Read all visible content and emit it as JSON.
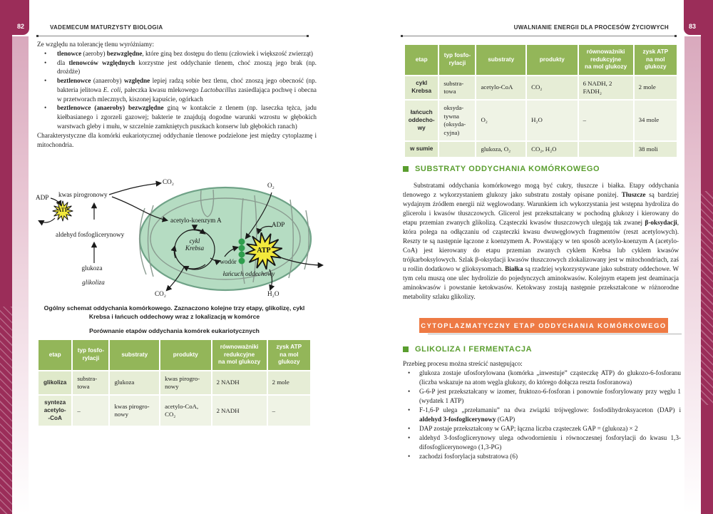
{
  "colors": {
    "maroon": "#9b2d59",
    "table_header_green": "#93b659",
    "heading_green": "#5a9e2f",
    "banner_orange": "#ee7a44",
    "mito_fill": "#b5dcc2",
    "mito_stroke": "#6fa287",
    "atp_yellow": "#f2e93c",
    "dot_green": "#2f9e4e"
  },
  "page_left": {
    "page_number": "82",
    "header": "VADEMECUM MATURZYSTY BIOLOGIA",
    "intro": "Ze względu na tolerancję tlenu wyróżniamy:",
    "bullets": [
      [
        {
          "t": "tlenowce",
          "b": true
        },
        {
          "t": " (aeroby) "
        },
        {
          "t": "bezwzględne",
          "b": true
        },
        {
          "t": ", które giną bez dostępu do tlenu (człowiek i większość zwierząt)"
        }
      ],
      [
        {
          "t": "dla "
        },
        {
          "t": "tlenowców względnych",
          "b": true
        },
        {
          "t": " korzystne jest oddychanie tlenem, choć znoszą jego brak (np. drożdże)"
        }
      ],
      [
        {
          "t": "beztlenowce",
          "b": true
        },
        {
          "t": " (anaeroby) "
        },
        {
          "t": "względne",
          "b": true
        },
        {
          "t": " lepiej radzą sobie bez tlenu, choć znoszą jego obecność (np. bakteria jelitowa "
        },
        {
          "t": "E. coli",
          "i": true
        },
        {
          "t": ", pałeczka kwasu mlekowego "
        },
        {
          "t": "Lactobacillus",
          "i": true
        },
        {
          "t": " zasiedlająca pochwę i obecna w przetworach mlecznych, kiszonej kapuście, ogórkach"
        }
      ],
      [
        {
          "t": "beztlenowce (anaeroby) bezwzględne",
          "b": true
        },
        {
          "t": " giną w kontakcie z tlenem (np. laseczka tężca, jadu kiełbasianego i zgorzeli gazowej; bakterie te znajdują dogodne warunki wzrostu w głębokich warstwach gleby i mułu, w szczelnie zamkniętych puszkach konserw lub głębokich ranach)"
        }
      ]
    ],
    "closing": "Charakterystyczne dla komórki eukariotycznej oddychanie tlenowe podzielone jest między cytoplazmę i mitochondria.",
    "diagram_labels": {
      "co2_top": "CO₂",
      "kwas_pirogronowy": "kwas pirogronowy",
      "adp_left": "ADP",
      "atp_left": "ATP",
      "aldehyd": "aldehyd fosfoglicerynowy",
      "glukoza": "glukoza",
      "glikoliza": "glikoliza",
      "acetylo_koenzym": "acetylo-koenzym A",
      "cykl_krebsa": "cykl\nKrebsa",
      "wodor": "wodór",
      "adp_mito": "ADP",
      "atp_mito": "ATP",
      "o2": "O₂",
      "h2o": "H₂O",
      "co2_bottom": "CO₂",
      "lancuch_oddechowy": "łańcuch oddechowy"
    },
    "caption": "Ogólny schemat oddychania komórkowego. Zaznaczono kolejne trzy etapy, glikolizę, cykl Krebsa i łańcuch oddechowy wraz z lokalizacją w komórce",
    "table_title": "Porównanie etapów oddychania komórek eukariotycznych",
    "table": {
      "headers": [
        "etap",
        "typ fosfo-\nrylacji",
        "substraty",
        "produkty",
        "równoważniki\nredukcyjne\nna mol glukozy",
        "zysk ATP\nna mol\nglukozy"
      ],
      "rows": [
        [
          "glikoliza",
          "substra-\ntowa",
          "glukoza",
          "kwas pirogro-\nnowy",
          "2 NADH",
          "2 mole"
        ],
        [
          "synteza\nacetylo-\n-CoA",
          "–",
          "kwas pirogro-\nnowy",
          "acetylo-CoA,\nCO₂",
          "2 NADH",
          "–"
        ]
      ]
    }
  },
  "page_right": {
    "page_number": "83",
    "header": "UWALNIANIE ENERGII DLA PROCESÓW ŻYCIOWYCH",
    "table": {
      "headers": [
        "etap",
        "typ fosfo-\nrylacji",
        "substraty",
        "produkty",
        "równoważniki\nredukcyjne\nna mol glukozy",
        "zysk ATP\nna mol\nglukozy"
      ],
      "rows": [
        [
          "cykl\nKrebsa",
          "substra-\ntowa",
          "acetylo-CoA",
          "CO₂",
          "6 NADH, 2 FADH₂",
          "2 mole"
        ],
        [
          "łańcuch\noddecho-\nwy",
          "oksyda-\ntywna\n(oksyda-\ncyjna)",
          "O₂",
          "H₂O",
          "–",
          "34 mole"
        ],
        [
          "w sumie",
          "",
          "glukoza, O₂",
          "CO₂, H₂O",
          "",
          "38 moli"
        ]
      ]
    },
    "section1": {
      "title": "SUBSTRATY ODDYCHANIA KOMÓRKOWEGO",
      "paragraph": [
        {
          "t": "Substratami oddychania komórkowego mogą być cukry, tłuszcze i białka. Etapy oddychania tlenowego z wykorzystaniem glukozy jako substratu zostały opisane poniżej. "
        },
        {
          "t": "Tłuszcze",
          "b": true
        },
        {
          "t": " są bardziej wydajnym źródłem energii niż węglowodany. Warunkiem ich wykorzystania jest wstępna hydroliza do glicerolu i kwasów tłuszczowych. Glicerol jest przekształcany w pochodną glukozy i kierowany do etapu przemian zwanych glikolizą. Cząsteczki kwasów tłuszczowych ulegają tak zwanej "
        },
        {
          "t": "β-oksydacji",
          "b": true
        },
        {
          "t": ", która polega na odłączaniu od cząsteczki kwasu dwuwęglowych fragmentów (reszt acetylowych). Reszty te są następnie łączone z koenzymem A. Powstający w ten sposób acetylo-koenzym A (acetylo-CoA) jest kierowany do etapu przemian zwanych cyklem Krebsa lub cyklem kwasów trójkarboksylowych. Szlak β-oksydacji kwasów tłuszczowych zlokalizowany jest w mitochondriach, zaś u roślin dodatkowo w glioksysomach. "
        },
        {
          "t": "Białka",
          "b": true
        },
        {
          "t": " są rzadziej wykorzystywane jako substraty oddechowe. W tym celu muszą one ulec hydrolizie do pojedynczych aminokwasów. Kolejnym etapem jest deaminacja aminokwasów i powstanie ketokwasów. Ketokwasy zostają następnie przekształcone w różnorodne metabolity szlaku glikolizy."
        }
      ]
    },
    "banner": "CYTOPLAZMATYCZNY ETAP ODDYCHANIA KOMÓRKOWEGO",
    "section2": {
      "title": "GLIKOLIZA I FERMENTACJA",
      "intro": "Przebieg procesu można streścić następująco:",
      "bullets": [
        [
          {
            "t": "glukoza zostaje ufosforylowana (komórka „inwestuje” cząsteczkę ATP) do glukozo-6-fosforanu (liczba wskazuje na atom węgla glukozy, do którego dołącza reszta fosforanowa)"
          }
        ],
        [
          {
            "t": "G-6-P jest przekształcany w izomer, fruktozo-6-fosforan i ponownie fosforylowany przy węglu 1 (wydatek 1 ATP)"
          }
        ],
        [
          {
            "t": "F-1,6-P ulega „przełamaniu” na dwa związki trójwęglowe: fosfodihydroksyaceton (DAP) i "
          },
          {
            "t": "aldehyd 3-fosfoglicerynowy",
            "b": true
          },
          {
            "t": " (GAP)"
          }
        ],
        [
          {
            "t": "DAP zostaje przekształcony w GAP; łączna liczba cząsteczek GAP = (glukoza) × 2"
          }
        ],
        [
          {
            "t": "aldehyd 3-fosfoglicerynowy ulega odwodornieniu i równoczesnej fosforylacji do kwasu 1,3-difosfoglicerynowego (1,3-PG)"
          }
        ],
        [
          {
            "t": "zachodzi fosforylacja substratowa (6)"
          }
        ]
      ]
    }
  }
}
